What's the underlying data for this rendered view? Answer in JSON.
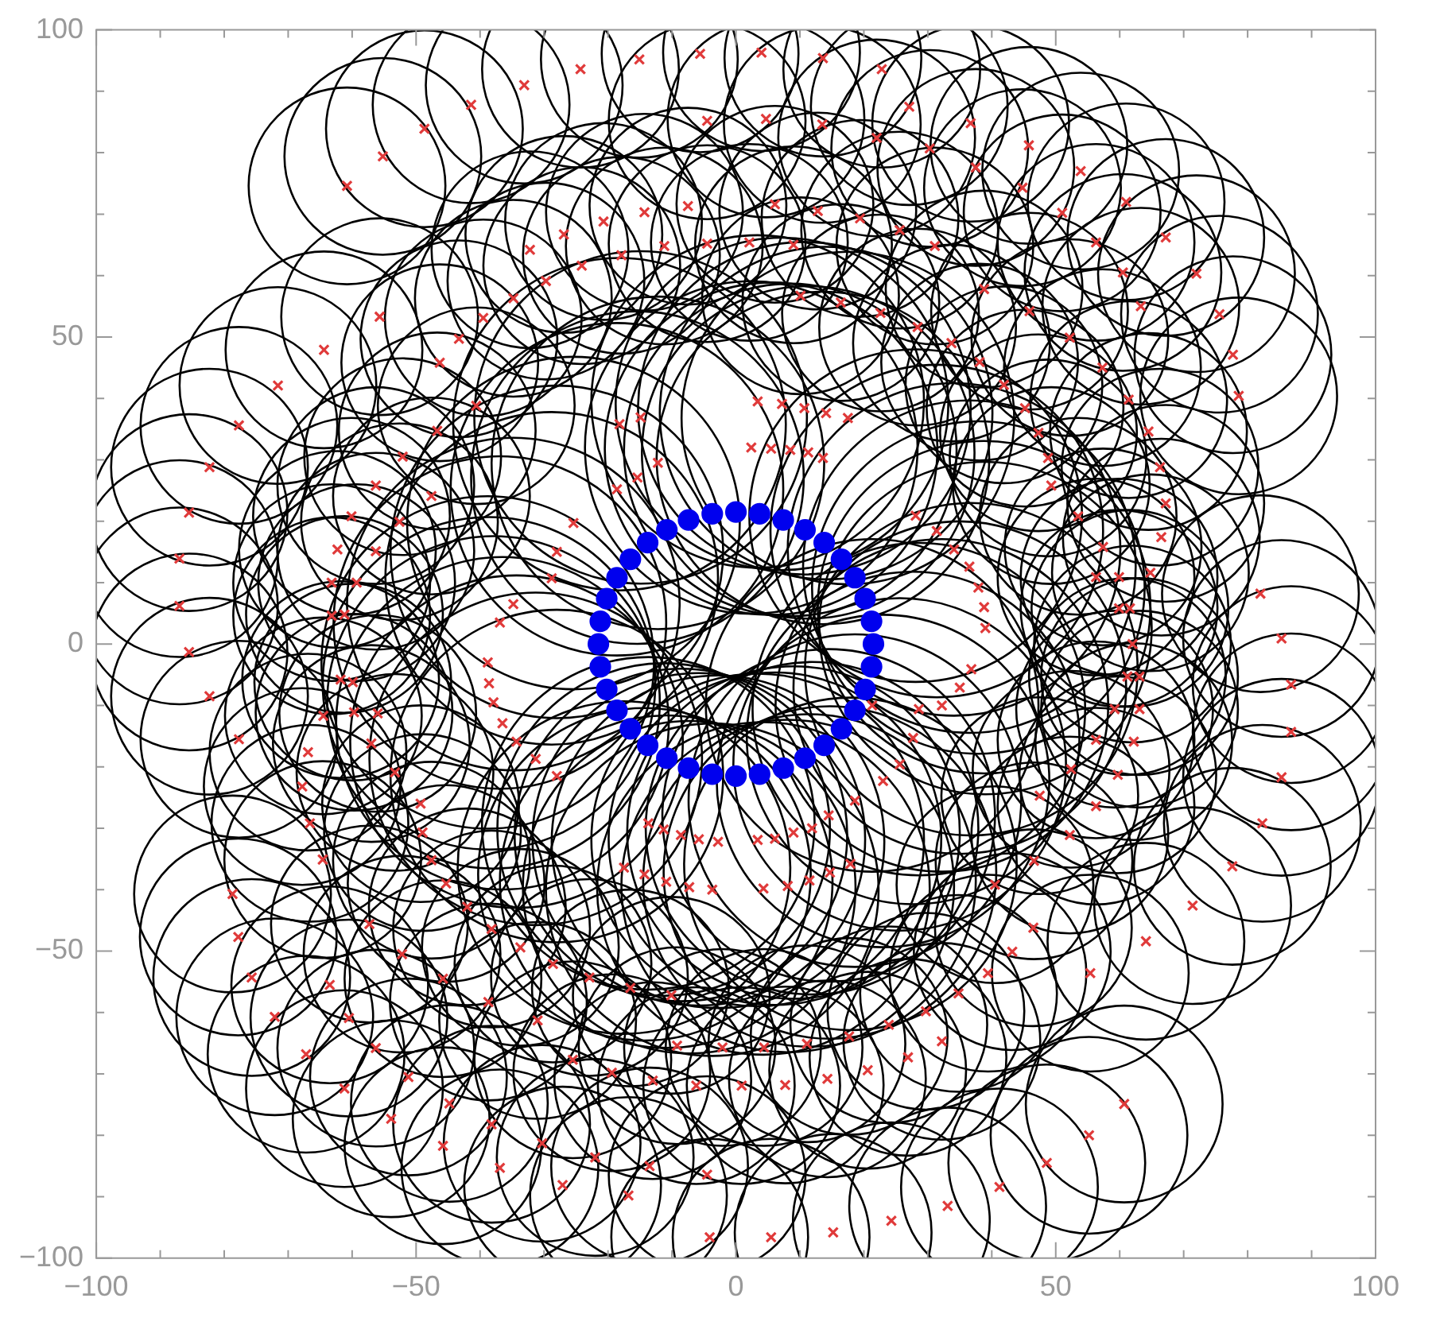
{
  "chart_data": {
    "type": "bubble",
    "xlim": [
      -100,
      100
    ],
    "ylim": [
      -100,
      100
    ],
    "xticks": [
      {
        "value": -100,
        "label": "−100"
      },
      {
        "value": -90,
        "label": null
      },
      {
        "value": -80,
        "label": null
      },
      {
        "value": -70,
        "label": null
      },
      {
        "value": -60,
        "label": null
      },
      {
        "value": -50,
        "label": "−50"
      },
      {
        "value": -40,
        "label": null
      },
      {
        "value": -30,
        "label": null
      },
      {
        "value": -20,
        "label": null
      },
      {
        "value": -10,
        "label": null
      },
      0,
      {
        "value": 10,
        "label": null
      },
      {
        "value": 20,
        "label": null
      },
      {
        "value": 30,
        "label": null
      },
      {
        "value": 40,
        "label": null
      },
      50,
      {
        "value": 60,
        "label": null
      },
      {
        "value": 70,
        "label": null
      },
      {
        "value": 80,
        "label": null
      },
      {
        "value": 90,
        "label": null
      },
      100
    ],
    "yticks": [
      {
        "value": -100,
        "label": "−100"
      },
      {
        "value": -90,
        "label": null
      },
      {
        "value": -80,
        "label": null
      },
      {
        "value": -70,
        "label": null
      },
      {
        "value": -60,
        "label": null
      },
      {
        "value": -50,
        "label": "−50"
      },
      {
        "value": -40,
        "label": null
      },
      {
        "value": -30,
        "label": null
      },
      {
        "value": -20,
        "label": null
      },
      {
        "value": -10,
        "label": null
      },
      0,
      {
        "value": 10,
        "label": null
      },
      {
        "value": 20,
        "label": null
      },
      {
        "value": 30,
        "label": null
      },
      {
        "value": 40,
        "label": null
      },
      50,
      {
        "value": 60,
        "label": null
      },
      {
        "value": 70,
        "label": null
      },
      {
        "value": 80,
        "label": null
      },
      {
        "value": 90,
        "label": null
      },
      100
    ],
    "series": [
      {
        "color": "#e03a3a",
        "marker": "cross",
        "x": [
          -60.8,
          -55.2,
          -48.7,
          -41.4,
          -33.1,
          -24.3,
          -15.1,
          -5.6,
          -55.7,
          -64.4,
          -71.6,
          -77.7,
          -82.3,
          -85.5,
          -87.0,
          -87.0,
          -39.5,
          -43.3,
          -46.3,
          -46.7,
          -52.1,
          -56.3,
          -60.1,
          -62.3,
          -63.2,
          -63.2,
          -40.6,
          -47.6,
          -52.6,
          -56.3,
          -59.3,
          -61.2,
          -34.8,
          -29.7,
          -32.2,
          -26.9,
          -24.1,
          -20.7,
          -17.9,
          -14.3,
          -11.2,
          -7.5,
          -4.5,
          -4.5,
          -18.2,
          -14.9,
          -12.2,
          -15.4,
          -18.6,
          -25.4,
          -28.0,
          -28.8,
          -34.8,
          -36.9,
          4.0,
          13.6,
          22.8,
          27.1,
          36.7,
          45.8,
          53.9,
          61.0,
          67.2,
          72.0,
          75.6,
          77.7,
          78.6,
          82.0,
          85.3,
          4.7,
          13.5,
          22.0,
          30.3,
          37.5,
          44.8,
          51.0,
          56.3,
          60.5,
          63.3,
          6.1,
          12.8,
          19.4,
          25.6,
          31.1,
          38.8,
          45.9,
          52.2,
          57.3,
          61.4,
          64.5,
          66.3,
          67.2,
          66.5,
          64.8,
          2.1,
          9.0,
          10.1,
          16.4,
          22.6,
          28.4,
          33.7,
          38.1,
          41.9,
          45.2,
          47.3,
          48.8,
          49.3,
          53.5,
          57.4,
          56.3,
          59.9,
          59.9,
          61.6,
          3.4,
          7.2,
          10.7,
          14.1,
          17.5,
          2.4,
          5.5,
          8.5,
          11.3,
          13.6,
          28.1,
          31.4,
          34.1,
          36.5,
          37.9,
          38.8,
          39.0,
          -85.5,
          -82.3,
          -77.7,
          -78.7,
          -77.8,
          -75.7,
          -72.1,
          -67.2,
          -61.2,
          -53.9,
          -45.8,
          -36.9,
          -27.1,
          -16.8,
          -4.1,
          -66.9,
          -67.8,
          -66.6,
          -64.6,
          -63.5,
          -60.5,
          -56.3,
          -51.2,
          -44.8,
          -38.2,
          -30.3,
          -22.0,
          -13.5,
          -4.5,
          -49.3,
          -49.0,
          -47.6,
          -45.3,
          -42.0,
          -38.2,
          -33.7,
          -28.6,
          -22.9,
          -16.5,
          -10.1,
          -57.3,
          -52.2,
          -45.8,
          -38.7,
          -31.0,
          -25.5,
          -19.4,
          -13.0,
          -6.2,
          -9.2,
          -2.1,
          -64.5,
          -59.7,
          -56.0,
          -57.0,
          -53.3,
          -61.8,
          -59.9,
          -38.8,
          -38.6,
          -37.9,
          -36.5,
          -34.3,
          -31.3,
          -28.0,
          -13.7,
          -11.3,
          -8.6,
          -5.8,
          -2.8,
          -17.5,
          -14.3,
          -10.9,
          -7.3,
          -3.7,
          86.8,
          86.8,
          85.3,
          82.3,
          77.6,
          71.4,
          64.1,
          55.4,
          62.0,
          61.2,
          63.1,
          59.2,
          63.1,
          56.3,
          62.2,
          52.4,
          59.7,
          47.5,
          56.3,
          52.2,
          46.6,
          40.5,
          46.5,
          43.2,
          39.4,
          34.8,
          29.7,
          23.9,
          17.7,
          11.1,
          4.4,
          32.2,
          26.9,
          20.6,
          14.3,
          7.7,
          0.9,
          60.7,
          55.2,
          48.6,
          41.2,
          33.1,
          24.3,
          15.2,
          5.5,
          3.4,
          6.1,
          9.0,
          11.9,
          14.5,
          4.3,
          8.1,
          11.5,
          14.7,
          17.9,
          21.3,
          25.6,
          27.7,
          28.6,
          32.2,
          35.0,
          36.8,
          18.6,
          23.0
        ],
        "values": [
          74.6,
          79.4,
          83.9,
          87.8,
          91.0,
          93.6,
          95.2,
          96.1,
          53.3,
          47.9,
          42.1,
          35.6,
          28.8,
          21.4,
          13.9,
          6.2,
          53.1,
          49.7,
          45.8,
          34.7,
          30.5,
          25.8,
          20.8,
          15.4,
          10.0,
          4.6,
          38.8,
          24.1,
          19.9,
          15.1,
          10.0,
          4.8,
          56.3,
          59.1,
          64.2,
          66.7,
          61.6,
          68.8,
          63.3,
          70.3,
          64.8,
          71.3,
          65.2,
          85.2,
          35.8,
          36.9,
          29.5,
          27.1,
          25.2,
          19.7,
          15.0,
          10.7,
          6.5,
          3.5,
          96.3,
          95.4,
          93.6,
          87.5,
          84.8,
          81.2,
          77.0,
          72.0,
          66.2,
          60.3,
          53.7,
          47.1,
          40.4,
          8.2,
          0.9,
          85.5,
          84.6,
          82.4,
          80.7,
          77.6,
          74.3,
          70.2,
          65.4,
          60.5,
          55.0,
          71.6,
          70.5,
          69.3,
          67.4,
          64.8,
          57.8,
          54.2,
          49.9,
          45.0,
          39.8,
          34.6,
          28.8,
          22.9,
          17.4,
          11.6,
          65.4,
          65.0,
          56.7,
          55.6,
          53.9,
          51.6,
          49.0,
          45.9,
          42.2,
          38.4,
          34.4,
          30.3,
          25.8,
          20.8,
          15.8,
          10.9,
          10.9,
          5.8,
          5.8,
          39.5,
          39.1,
          38.4,
          37.6,
          36.8,
          32.0,
          31.8,
          31.6,
          31.2,
          30.3,
          20.9,
          18.4,
          15.4,
          12.6,
          9.2,
          6.0,
          2.6,
          -1.3,
          -8.5,
          -15.5,
          -40.7,
          -47.7,
          -54.3,
          -60.7,
          -66.8,
          -72.4,
          -77.3,
          -81.7,
          -85.3,
          -88.1,
          -89.8,
          -96.6,
          -17.6,
          -23.2,
          -29.2,
          -35.1,
          -55.5,
          -60.9,
          -65.8,
          -70.5,
          -74.8,
          -78.2,
          -81.3,
          -83.6,
          -85.0,
          -86.4,
          -26.0,
          -30.7,
          -35.2,
          -39.0,
          -42.8,
          -46.4,
          -49.4,
          -52.1,
          -54.3,
          -56.0,
          -57.2,
          -45.6,
          -50.5,
          -54.5,
          -58.3,
          -61.3,
          -67.7,
          -69.8,
          -71.1,
          -71.9,
          -65.4,
          -65.7,
          -11.7,
          -11.1,
          -11.3,
          -16.2,
          -20.9,
          -5.8,
          -6.2,
          -3.0,
          -6.4,
          -9.5,
          -12.9,
          -15.9,
          -18.7,
          -21.5,
          -29.2,
          -30.2,
          -31.1,
          -31.8,
          -32.2,
          -36.4,
          -37.5,
          -38.7,
          -39.6,
          -40.0,
          -6.6,
          -14.3,
          -21.7,
          -29.2,
          -36.2,
          -42.6,
          -48.4,
          -53.6,
          0,
          -5.3,
          -5.3,
          -10.6,
          -10.6,
          -15.6,
          -15.9,
          -20.4,
          -21.3,
          -24.7,
          -26.4,
          -31.1,
          -35.3,
          -39.2,
          -46.2,
          -50.1,
          -53.6,
          -56.9,
          -59.8,
          -62.0,
          -63.9,
          -65.1,
          -65.7,
          -64.7,
          -67.3,
          -69.4,
          -70.8,
          -71.8,
          -71.9,
          -74.9,
          -80.0,
          -84.5,
          -88.4,
          -91.5,
          -93.9,
          -95.8,
          -96.6,
          -31.9,
          -31.7,
          -30.7,
          -30.0,
          -27.9,
          -39.8,
          -39.4,
          -38.5,
          -37.2,
          -35.8,
          -10.0,
          -19.6,
          -15.3,
          -10.6,
          -10.0,
          -7.1,
          -4.1,
          -25.5,
          -22.3
        ],
        "sizes": [
          0.35,
          0.35,
          0.35,
          0.35,
          0.35,
          0.35,
          0.35,
          0.35,
          0.35,
          0.35,
          0.35,
          0.35,
          0.35,
          0.35,
          0.35,
          0.35,
          0.35,
          0.35,
          0.35,
          0.35,
          0.35,
          0.35,
          0.35,
          0.35,
          0.35,
          0.35,
          0.35,
          0.35,
          0.35,
          0.35,
          0.35,
          0.35,
          0.35,
          0.35,
          0.35,
          0.35,
          0.35,
          0.35,
          0.35,
          0.35,
          0.35,
          0.35,
          0.35,
          0.35,
          1,
          1,
          1,
          1,
          1,
          1,
          1,
          1,
          1,
          1,
          0.35,
          0.35,
          0.35,
          0.35,
          0.35,
          0.35,
          0.35,
          0.35,
          0.35,
          0.35,
          0.35,
          0.35,
          0.35,
          0.35,
          0.35,
          0.35,
          0.35,
          0.35,
          0.35,
          0.35,
          0.35,
          0.35,
          0.35,
          0.35,
          0.35,
          0.35,
          0.35,
          0.35,
          0.35,
          0.35,
          0.35,
          0.35,
          0.35,
          0.35,
          0.35,
          0.35,
          0.35,
          0.35,
          0.35,
          0.35,
          0.35,
          0.35,
          0.35,
          0.35,
          0.35,
          0.35,
          0.35,
          0.35,
          0.35,
          0.35,
          0.35,
          0.35,
          0.35,
          0.35,
          0.35,
          0.35,
          0.35,
          0.35,
          0.35,
          1,
          1,
          1,
          1,
          1,
          1,
          1,
          1,
          1,
          1,
          1,
          1,
          1,
          1,
          1,
          1,
          1,
          0.35,
          0.35,
          0.35,
          0.35,
          0.35,
          0.35,
          0.35,
          0.35,
          0.35,
          0.35,
          0.35,
          0.35,
          0.35,
          0.35,
          0.35,
          0.35,
          0.35,
          0.35,
          0.35,
          0.35,
          0.35,
          0.35,
          0.35,
          0.35,
          0.35,
          0.35,
          0.35,
          0.35,
          0.35,
          0.35,
          0.35,
          0.35,
          0.35,
          0.35,
          0.35,
          0.35,
          0.35,
          0.35,
          0.35,
          0.35,
          0.35,
          0.35,
          0.35,
          0.35,
          0.35,
          0.35,
          0.35,
          0.35,
          0.35,
          0.35,
          0.35,
          0.35,
          0.35,
          0.35,
          0.35,
          0.35,
          0.35,
          0.35,
          1,
          1,
          1,
          1,
          1,
          1,
          1,
          1,
          1,
          1,
          1,
          1,
          1,
          1,
          1,
          1,
          1,
          0.35,
          0.35,
          0.35,
          0.35,
          0.35,
          0.35,
          0.35,
          0.35,
          0.35,
          0.35,
          0.35,
          0.35,
          0.35,
          0.35,
          0.35,
          0.35,
          0.35,
          0.35,
          0.35,
          0.35,
          0.35,
          0.35,
          0.35,
          0.35,
          0.35,
          0.35,
          0.35,
          0.35,
          0.35,
          0.35,
          0.35,
          0.35,
          0.35,
          0.35,
          0.35,
          0.35,
          0.35,
          0.35,
          0.35,
          0.35,
          0.35,
          0.35,
          0.35,
          0.35,
          0.35,
          1,
          1,
          1,
          1,
          1,
          1,
          1,
          1,
          1,
          1,
          1,
          1,
          1,
          1,
          1,
          1,
          1,
          1,
          1
        ]
      },
      {
        "type": "scatter",
        "color": "#0000ee",
        "marker": "circle",
        "x": [
          21.5,
          21.2,
          20.2,
          18.6,
          16.5,
          13.8,
          10.8,
          7.4,
          3.7,
          0,
          -3.7,
          -7.4,
          -10.8,
          -13.8,
          -16.5,
          -18.6,
          -20.2,
          -21.2,
          -21.5,
          -21.2,
          -20.2,
          -18.6,
          -16.5,
          -13.8,
          -10.8,
          -7.4,
          -3.7,
          0,
          3.7,
          7.4,
          10.8,
          13.8,
          16.5,
          18.6,
          20.2,
          21.2
        ],
        "values": [
          0,
          3.7,
          7.4,
          10.8,
          13.8,
          16.5,
          18.6,
          20.2,
          21.2,
          21.5,
          21.2,
          20.2,
          18.6,
          16.5,
          13.8,
          10.8,
          7.4,
          3.7,
          0,
          -3.7,
          -7.4,
          -10.8,
          -13.8,
          -16.5,
          -18.6,
          -20.2,
          -21.2,
          -21.5,
          -21.2,
          -20.2,
          -18.6,
          -16.5,
          -13.8,
          -10.8,
          -7.4,
          -3.7
        ]
      }
    ]
  }
}
